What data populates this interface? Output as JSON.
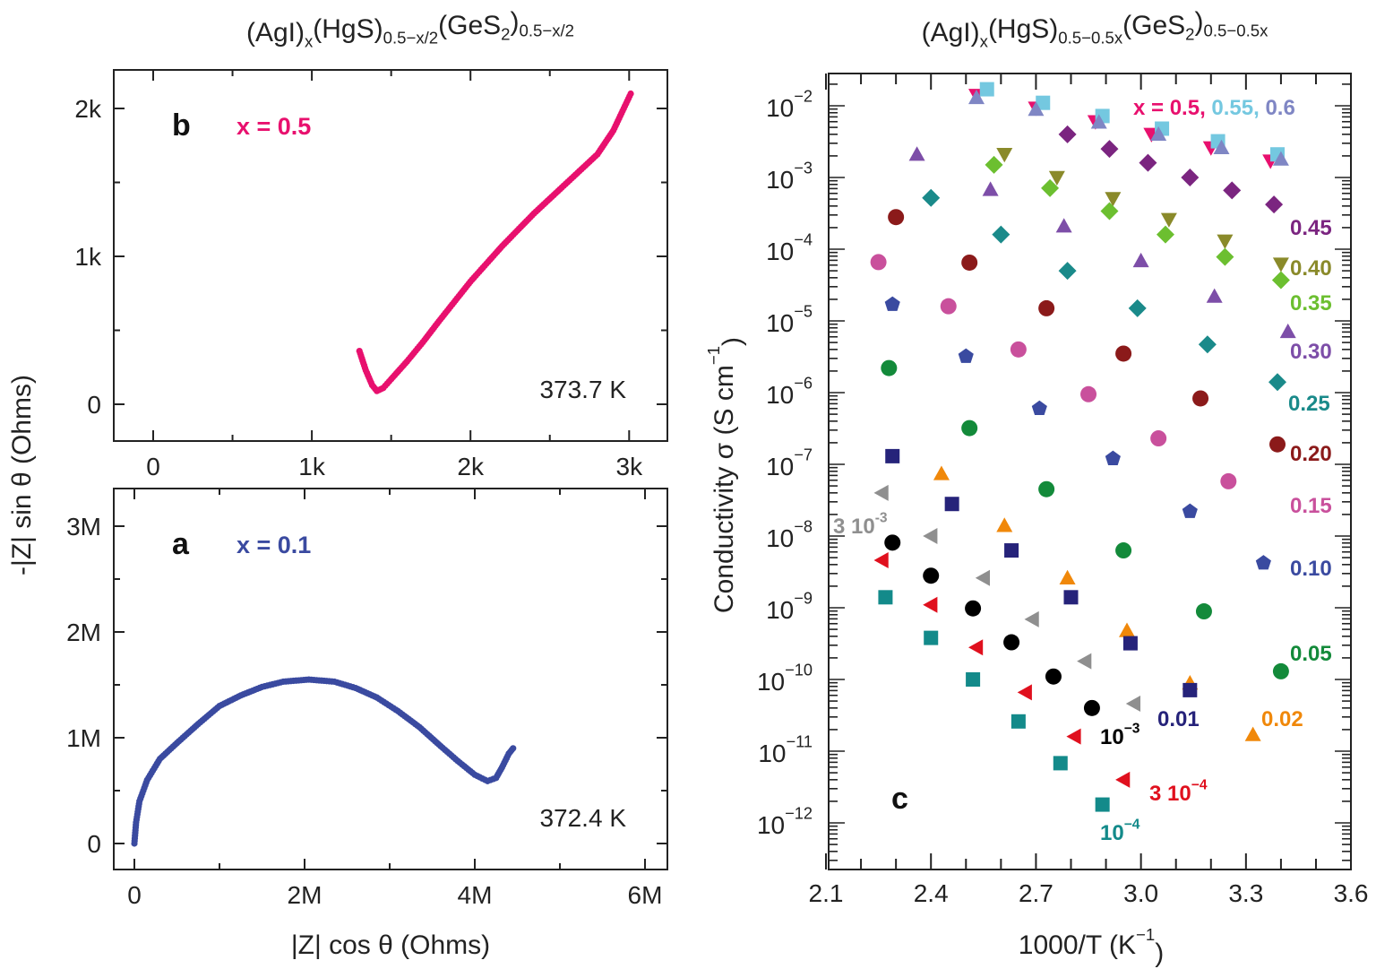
{
  "chart_data": [
    {
      "panel": "b",
      "type": "scatter",
      "title_parts": [
        "(AgI)",
        "x",
        "(HgS)",
        "0.5−x/2",
        "(GeS",
        "2",
        ")",
        "0.5−x/2"
      ],
      "xlabel": "",
      "ylabel": "",
      "xlim": [
        -250,
        3250
      ],
      "ylim": [
        -250,
        2250
      ],
      "x_ticks": [
        {
          "v": 0,
          "label": "0"
        },
        {
          "v": 1000,
          "label": "1k"
        },
        {
          "v": 2000,
          "label": "2k"
        },
        {
          "v": 3000,
          "label": "3k"
        }
      ],
      "y_ticks": [
        {
          "v": 0,
          "label": "0"
        },
        {
          "v": 1000,
          "label": "1k"
        },
        {
          "v": 2000,
          "label": "2k"
        }
      ],
      "panel_label": "b",
      "annotation": "x = 0.5",
      "temperature": "373.7 K",
      "color": "#e8106e",
      "x": [
        1300,
        1340,
        1380,
        1410,
        1450,
        1500,
        1600,
        1700,
        1800,
        2000,
        2200,
        2400,
        2600,
        2800,
        2900,
        3010
      ],
      "y": [
        360,
        230,
        130,
        90,
        110,
        170,
        290,
        420,
        560,
        830,
        1070,
        1290,
        1490,
        1690,
        1850,
        2100
      ]
    },
    {
      "panel": "a",
      "type": "scatter",
      "xlabel": "|Z| cos θ (Ohms)",
      "ylabel": "-|Z| sin θ (Ohms)",
      "xlim": [
        -200000.0,
        6300000.0
      ],
      "ylim": [
        -270000.0,
        3400000.0
      ],
      "x_ticks": [
        {
          "v": 0,
          "label": "0"
        },
        {
          "v": 2000000,
          "label": "2M"
        },
        {
          "v": 4000000,
          "label": "4M"
        },
        {
          "v": 6000000,
          "label": "6M"
        }
      ],
      "y_ticks": [
        {
          "v": 0,
          "label": "0"
        },
        {
          "v": 1000000,
          "label": "1M"
        },
        {
          "v": 2000000,
          "label": "2M"
        },
        {
          "v": 3000000,
          "label": "3M"
        }
      ],
      "panel_label": "a",
      "annotation": "x = 0.1",
      "temperature": "372.4 K",
      "color": "#3a4aa0",
      "x": [
        0,
        20000,
        60000,
        150000,
        300000,
        500000,
        750000,
        1000000,
        1250000,
        1500000,
        1750000,
        2050000,
        2350000,
        2600000,
        2850000,
        3100000,
        3350000,
        3600000,
        3800000,
        4000000,
        4150000,
        4250000,
        4320000,
        4400000,
        4450000
      ],
      "y": [
        0,
        200000,
        400000,
        600000,
        800000,
        950000,
        1130000,
        1300000,
        1400000,
        1480000,
        1530000,
        1550000,
        1530000,
        1470000,
        1380000,
        1250000,
        1100000,
        920000,
        780000,
        650000,
        590000,
        620000,
        720000,
        850000,
        900000
      ]
    },
    {
      "panel": "c",
      "type": "scatter",
      "title_parts": [
        "(AgI)",
        "x",
        "(HgS)",
        "0.5−0.5x",
        "(GeS",
        "2",
        ")",
        "0.5−0.5x"
      ],
      "xlabel_parts": [
        "1000/T (K",
        "−1",
        ")"
      ],
      "ylabel_parts": [
        "Conductivity σ (S cm",
        "−1",
        ")"
      ],
      "xlim": [
        2.1,
        3.6
      ],
      "ylim": [
        1e-13,
        0.1
      ],
      "y_scale": "log",
      "x_ticks": [
        "2.1",
        "2.4",
        "2.7",
        "3.0",
        "3.3",
        "3.6"
      ],
      "y_ticks": [
        {
          "base": "10",
          "exp": "−2"
        },
        {
          "base": "10",
          "exp": "−3"
        },
        {
          "base": "10",
          "exp": "−4"
        },
        {
          "base": "10",
          "exp": "−5"
        },
        {
          "base": "10",
          "exp": "−6"
        },
        {
          "base": "10",
          "exp": "−7"
        },
        {
          "base": "10",
          "exp": "−8"
        },
        {
          "base": "10",
          "exp": "−9"
        },
        {
          "base": "10",
          "exp": "−10"
        },
        {
          "base": "10",
          "exp": "−11"
        },
        {
          "base": "10",
          "exp": "−12"
        }
      ],
      "panel_label": "c",
      "series": [
        {
          "name": "x = 0.5,",
          "marker": "triangle-down",
          "color": "#e8106e",
          "x": [
            2.53,
            2.7,
            2.87,
            3.03,
            3.2,
            3.37
          ],
          "y": [
            0.014,
            0.0093,
            0.006,
            0.004,
            0.0026,
            0.0017
          ]
        },
        {
          "name": "0.55,",
          "marker": "square",
          "color": "#74c8e0",
          "x": [
            2.56,
            2.72,
            2.89,
            3.06,
            3.22,
            3.39
          ],
          "y": [
            0.017,
            0.011,
            0.0072,
            0.0048,
            0.0032,
            0.0021
          ]
        },
        {
          "name": "0.6",
          "marker": "triangle-up",
          "color": "#7f86c4",
          "x": [
            2.53,
            2.7,
            2.88,
            3.05,
            3.23,
            3.4
          ],
          "y": [
            0.013,
            0.0089,
            0.0059,
            0.004,
            0.0026,
            0.0018
          ]
        },
        {
          "name": "0.45",
          "marker": "diamond",
          "color": "#7b2580",
          "x": [
            2.79,
            2.91,
            3.02,
            3.14,
            3.26,
            3.38
          ],
          "y": [
            0.004,
            0.0025,
            0.0016,
            0.001,
            0.00066,
            0.00042
          ]
        },
        {
          "name": "0.40",
          "marker": "triangle-down",
          "color": "#8a8a2a",
          "x": [
            2.61,
            2.76,
            2.92,
            3.08,
            3.24,
            3.4
          ],
          "y": [
            0.0021,
            0.001,
            0.00051,
            0.00026,
            0.00013,
            6.2e-05
          ]
        },
        {
          "name": "0.35",
          "marker": "diamond",
          "color": "#6cbf30",
          "x": [
            2.58,
            2.74,
            2.91,
            3.07,
            3.24,
            3.4
          ],
          "y": [
            0.0015,
            0.00071,
            0.00034,
            0.00016,
            7.8e-05,
            3.7e-05
          ]
        },
        {
          "name": "0.30",
          "marker": "triangle-up",
          "color": "#7d4ea8",
          "x": [
            2.36,
            2.57,
            2.78,
            3.0,
            3.21,
            3.42
          ],
          "y": [
            0.0021,
            0.00068,
            0.00021,
            6.9e-05,
            2.2e-05,
            7.1e-06
          ]
        },
        {
          "name": "0.25",
          "marker": "diamond",
          "color": "#1a8a8a",
          "x": [
            2.4,
            2.6,
            2.79,
            2.99,
            3.19,
            3.39
          ],
          "y": [
            0.00052,
            0.00016,
            5e-05,
            1.5e-05,
            4.7e-06,
            1.4e-06
          ]
        },
        {
          "name": "0.20",
          "marker": "circle",
          "color": "#8b1a1a",
          "x": [
            2.3,
            2.51,
            2.73,
            2.95,
            3.17,
            3.39
          ],
          "y": [
            0.00028,
            6.5e-05,
            1.5e-05,
            3.5e-06,
            8.3e-07,
            1.9e-07
          ]
        },
        {
          "name": "0.15",
          "marker": "circle",
          "color": "#c9509c",
          "x": [
            2.25,
            2.45,
            2.65,
            2.85,
            3.05,
            3.25
          ],
          "y": [
            6.6e-05,
            1.6e-05,
            4e-06,
            9.5e-07,
            2.3e-07,
            5.8e-08
          ]
        },
        {
          "name": "0.10",
          "marker": "pentagon",
          "color": "#3a4aa0",
          "x": [
            2.29,
            2.5,
            2.71,
            2.92,
            3.14,
            3.35
          ],
          "y": [
            1.7e-05,
            3.2e-06,
            6e-07,
            1.2e-07,
            2.2e-08,
            4.2e-09
          ]
        },
        {
          "name": "0.05",
          "marker": "circle",
          "color": "#138a3a",
          "x": [
            2.28,
            2.51,
            2.73,
            2.95,
            3.18,
            3.4
          ],
          "y": [
            2.2e-06,
            3.2e-07,
            4.5e-08,
            6.3e-09,
            8.9e-10,
            1.3e-10
          ]
        },
        {
          "name": "0.02",
          "marker": "triangle-up",
          "color": "#f0880a",
          "x": [
            2.43,
            2.61,
            2.79,
            2.96,
            3.14,
            3.32
          ],
          "y": [
            7.4e-08,
            1.4e-08,
            2.6e-09,
            4.8e-10,
            8.9e-11,
            1.7e-11
          ]
        },
        {
          "name": "0.01",
          "marker": "square",
          "color": "#26237a",
          "x": [
            2.29,
            2.46,
            2.63,
            2.8,
            2.97,
            3.14
          ],
          "y": [
            1.3e-07,
            2.8e-08,
            6.3e-09,
            1.4e-09,
            3.2e-10,
            7.1e-11
          ]
        },
        {
          "name": "3 10",
          "name_sup": "-3",
          "marker": "triangle-left",
          "color": "#8f8f8f",
          "x": [
            2.26,
            2.4,
            2.55,
            2.69,
            2.84,
            2.98
          ],
          "y": [
            4e-08,
            1e-08,
            2.6e-09,
            6.9e-10,
            1.8e-10,
            4.6e-11
          ]
        },
        {
          "name": "10",
          "name_sup": "−3",
          "marker": "circle",
          "color": "#000000",
          "x": [
            2.29,
            2.4,
            2.52,
            2.63,
            2.75,
            2.86
          ],
          "y": [
            8.1e-09,
            2.8e-09,
            9.8e-10,
            3.3e-10,
            1.1e-10,
            4e-11
          ]
        },
        {
          "name": "3 10",
          "name_sup": "−4",
          "marker": "triangle-left",
          "color": "#e0101e",
          "x": [
            2.26,
            2.4,
            2.53,
            2.67,
            2.81,
            2.95
          ],
          "y": [
            4.6e-09,
            1.1e-09,
            2.8e-10,
            6.6e-11,
            1.6e-11,
            4e-12
          ]
        },
        {
          "name": "10",
          "name_sup": "−4",
          "marker": "square",
          "color": "#138a8a",
          "x": [
            2.27,
            2.4,
            2.52,
            2.65,
            2.77,
            2.89
          ],
          "y": [
            1.4e-09,
            3.8e-10,
            1e-10,
            2.6e-11,
            6.8e-12,
            1.8e-12
          ]
        }
      ]
    }
  ]
}
